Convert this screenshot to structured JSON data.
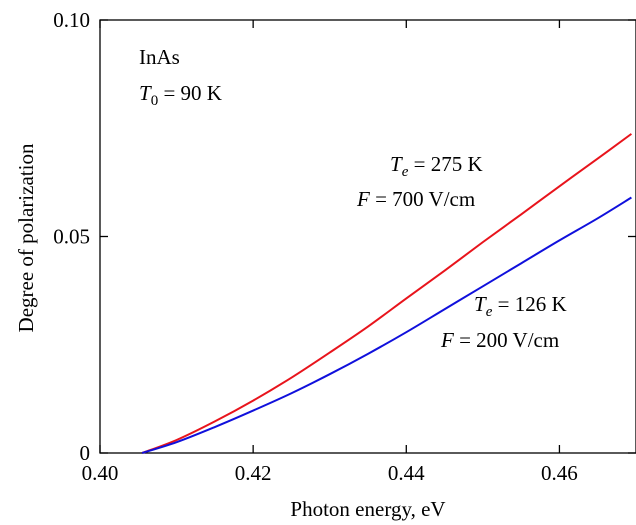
{
  "chart_data": {
    "type": "line",
    "title": "",
    "xlabel": "Photon energy, eV",
    "ylabel": "Degree of polarization",
    "xlim": [
      0.4,
      0.47
    ],
    "ylim": [
      0,
      0.1
    ],
    "xticks": [
      0.4,
      0.42,
      0.44,
      0.46
    ],
    "xtick_labels": [
      "0.40",
      "0.42",
      "0.44",
      "0.46"
    ],
    "yticks": [
      0,
      0.05,
      0.1
    ],
    "ytick_labels": [
      "0",
      "0.05",
      "0.10"
    ],
    "grid": false,
    "annotations": {
      "material": "InAs",
      "t0": {
        "symbol": "T",
        "sub": "0",
        "value": " = 90 K"
      },
      "red": {
        "te": {
          "symbol": "T",
          "sub": "e",
          "value": " = 275 K"
        },
        "f": {
          "symbol": "F",
          "value": " = 700 V/cm"
        }
      },
      "blue": {
        "te": {
          "symbol": "T",
          "sub": "e",
          "value": " = 126 K"
        },
        "f": {
          "symbol": "F",
          "value": " = 200 V/cm"
        }
      }
    },
    "series": [
      {
        "color": "#e8141c",
        "x": [
          0.4055,
          0.41,
          0.415,
          0.42,
          0.425,
          0.43,
          0.435,
          0.44,
          0.445,
          0.45,
          0.455,
          0.46,
          0.465,
          0.4694
        ],
        "y": [
          0.0,
          0.003,
          0.0073,
          0.0121,
          0.0174,
          0.0232,
          0.0292,
          0.0357,
          0.0421,
          0.0487,
          0.0551,
          0.0616,
          0.068,
          0.0737
        ]
      },
      {
        "color": "#1010dc",
        "x": [
          0.4055,
          0.41,
          0.415,
          0.42,
          0.425,
          0.43,
          0.435,
          0.44,
          0.445,
          0.45,
          0.455,
          0.46,
          0.465,
          0.4694
        ],
        "y": [
          0.0,
          0.0025,
          0.006,
          0.0098,
          0.0138,
          0.0182,
          0.0229,
          0.0279,
          0.0332,
          0.0385,
          0.0438,
          0.0491,
          0.0542,
          0.059
        ]
      }
    ]
  }
}
